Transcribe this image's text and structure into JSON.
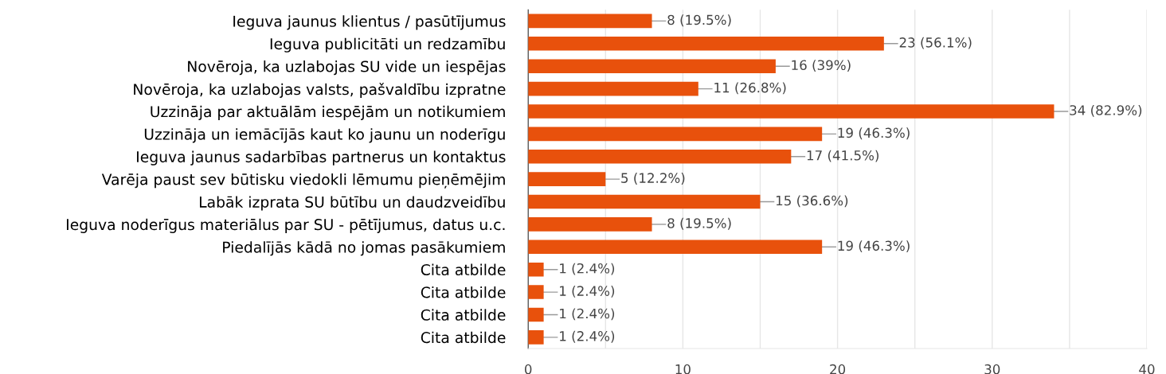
{
  "chart_data": {
    "type": "bar",
    "orientation": "horizontal",
    "categories": [
      "Ieguva jaunus klientus / pasūtījumus",
      "Ieguva publicitāti un redzamību",
      "Novēroja, ka uzlabojas SU vide un iespējas",
      "Novēroja, ka uzlabojas valsts, pašvaldību izpratne",
      "Uzzināja par aktuālām iespējām un notikumiem",
      "Uzzināja un iemācījās kaut ko jaunu un noderīgu",
      "Ieguva jaunus sadarbības partnerus un kontaktus",
      "Varēja paust sev būtisku viedokli lēmumu pieņēmējim",
      "Labāk izprata SU būtību un daudzveidību",
      "Ieguva noderīgus materiālus par SU - pētījumus, datus u.c.",
      "Piedalījās kādā no jomas pasākumiem",
      "Cita atbilde",
      "Cita atbilde",
      "Cita atbilde",
      "Cita atbilde"
    ],
    "values": [
      8,
      23,
      16,
      11,
      34,
      19,
      17,
      5,
      15,
      8,
      19,
      1,
      1,
      1,
      1
    ],
    "value_labels": [
      "8 (19.5%)",
      "23 (56.1%)",
      "16 (39%)",
      "11 (26.8%)",
      "34 (82.9%)",
      "19 (46.3%)",
      "17 (41.5%)",
      "5 (12.2%)",
      "15 (36.6%)",
      "8 (19.5%)",
      "19 (46.3%)",
      "1 (2.4%)",
      "1 (2.4%)",
      "1 (2.4%)",
      "1 (2.4%)"
    ],
    "color": "#e8510c",
    "xlim": [
      0,
      40
    ],
    "xticks": [
      0,
      {
        "value": 5,
        "label": null
      },
      10,
      {
        "value": 15,
        "label": null
      },
      20,
      {
        "value": 25,
        "label": null
      },
      30,
      {
        "value": 35,
        "label": null
      },
      40
    ],
    "grid": "x"
  }
}
